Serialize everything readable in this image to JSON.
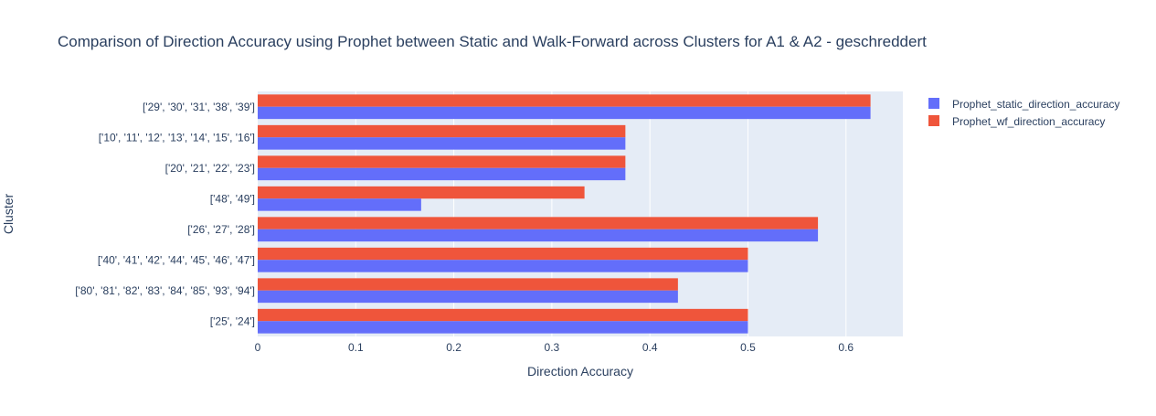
{
  "chart_data": {
    "type": "bar",
    "orientation": "horizontal",
    "barmode": "group",
    "title": "Comparison of Direction Accuracy using Prophet between Static and Walk-Forward across Clusters for A1 & A2 -  geschreddert",
    "xlabel": "Direction Accuracy",
    "ylabel": "Cluster",
    "xlim": [
      0,
      0.658
    ],
    "xticks": [
      0,
      0.1,
      0.2,
      0.3,
      0.4,
      0.5,
      0.6
    ],
    "xtick_labels": [
      "0",
      "0.1",
      "0.2",
      "0.3",
      "0.4",
      "0.5",
      "0.6"
    ],
    "grid": true,
    "legend_position": "top-right",
    "categories": [
      "['25', '24']",
      "['80', '81', '82', '83', '84', '85', '93', '94']",
      "['40', '41', '42', '44', '45', '46', '47']",
      "['26', '27', '28']",
      "['48', '49']",
      "['20', '21', '22', '23']",
      "['10', '11', '12', '13', '14', '15', '16']",
      "['29', '30', '31', '38', '39']"
    ],
    "series": [
      {
        "name": "Prophet_static_direction_accuracy",
        "color": "#636efa",
        "values": [
          0.5,
          0.4286,
          0.5,
          0.5714,
          0.1667,
          0.375,
          0.375,
          0.625
        ]
      },
      {
        "name": "Prophet_wf_direction_accuracy",
        "color": "#ef553b",
        "values": [
          0.5,
          0.4286,
          0.5,
          0.5714,
          0.3333,
          0.375,
          0.375,
          0.625
        ]
      }
    ]
  },
  "colors": {
    "plot_background": "#e5ecf6",
    "gridline": "#ffffff",
    "text": "#2a3f5f"
  }
}
